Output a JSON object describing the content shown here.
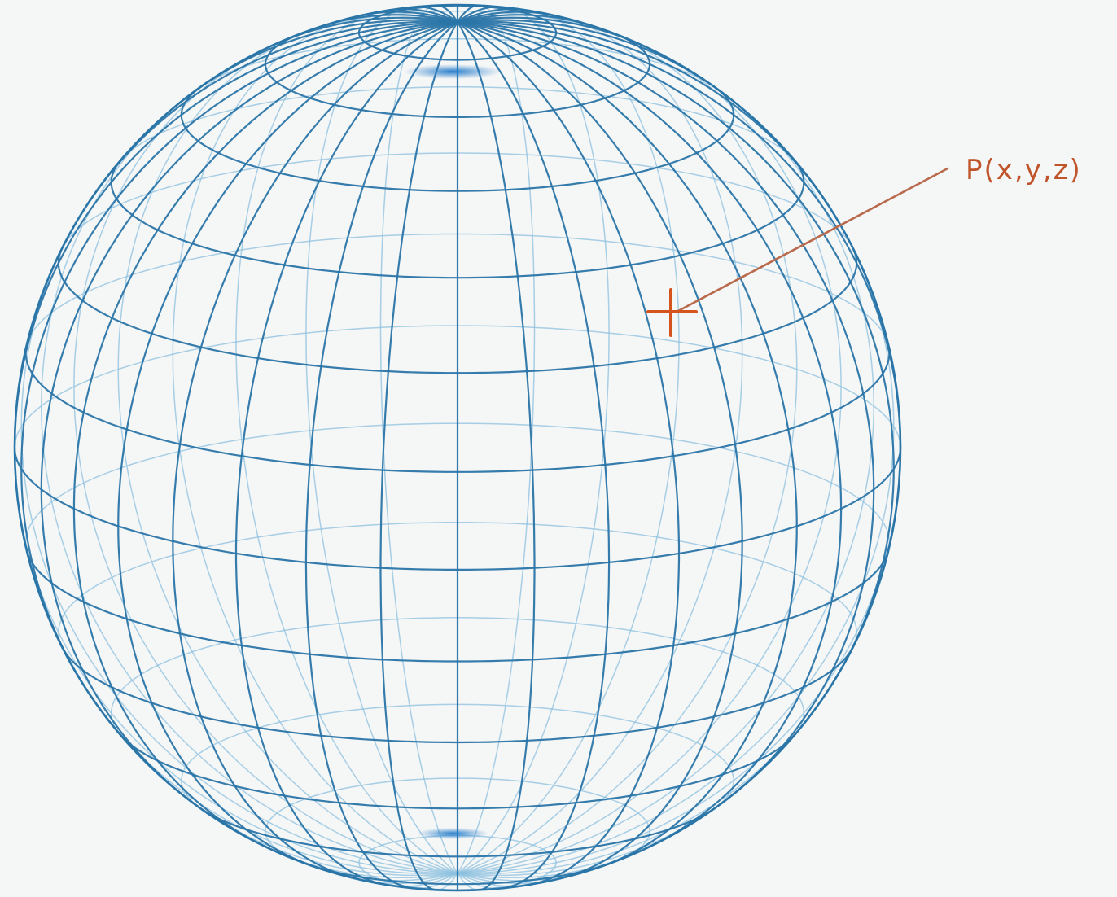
{
  "colors": {
    "background": "#f5f6f6",
    "grid_front": "#2a75a8",
    "grid_back": "#8cc0df",
    "pole_glow": "#1f78c8",
    "point_marker": "#d4541c",
    "leader_line": "#b96a4c",
    "label_text": "#c0542a"
  },
  "sphere": {
    "parallel_count": 13,
    "meridian_count": 36,
    "tilt_degrees": 16
  },
  "point": {
    "label": "P(x,y,z)",
    "marker_icon": "cross-marker"
  }
}
